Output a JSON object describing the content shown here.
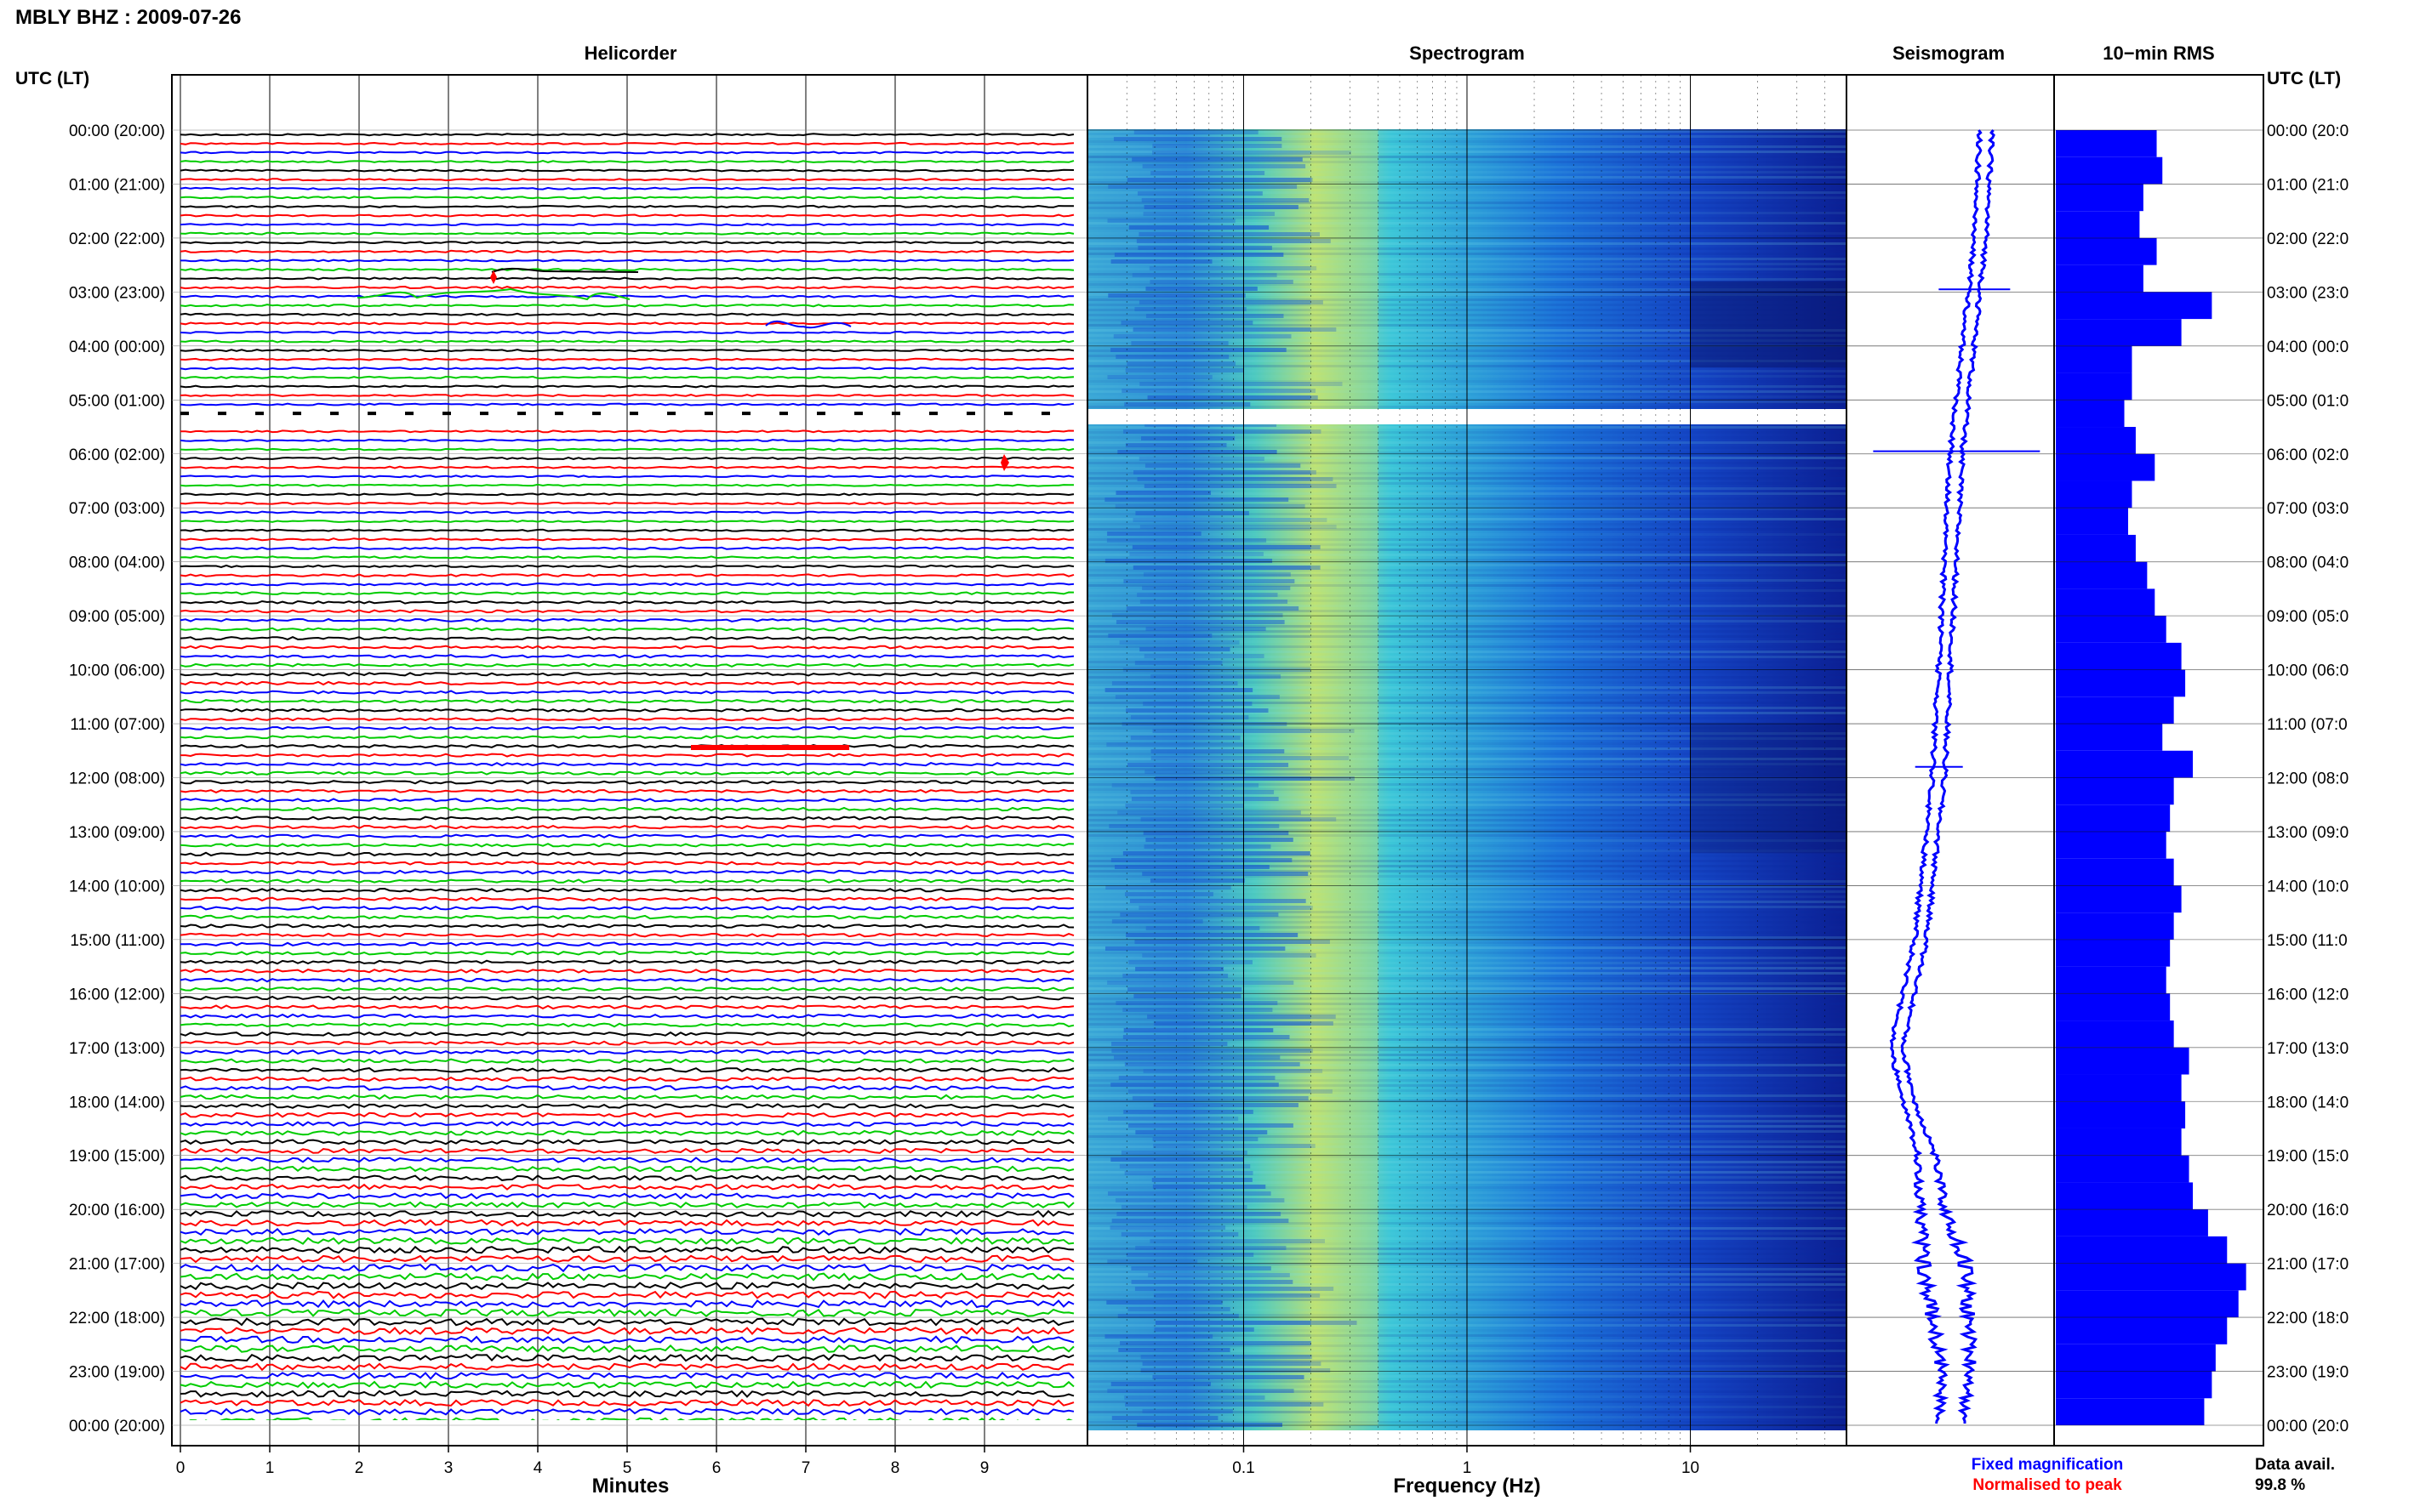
{
  "header": {
    "title": "MBLY BHZ : 2009-07-26",
    "utc_label_left": "UTC (LT)",
    "utc_label_right": "UTC (LT)"
  },
  "panels": {
    "helicorder": "Helicorder",
    "spectrogram": "Spectrogram",
    "seismogram": "Seismogram",
    "rms": "10−min RMS"
  },
  "axes": {
    "minutes_label": "Minutes",
    "frequency_label": "Frequency (Hz)"
  },
  "legend": {
    "fixed": "Fixed magnification",
    "normalised": "Normalised to peak"
  },
  "data_avail": {
    "label": "Data avail.",
    "value": "99.8 %"
  },
  "colors": {
    "trace_cycle": [
      "#000000",
      "#ff0000",
      "#0000ff",
      "#00cc00"
    ],
    "rms_fill": "#0000ff",
    "seismogram": "#0000ff",
    "fixed_text": "#0000ff",
    "normalised_text": "#ff0000",
    "spec_low": "#00005a",
    "spec_high": "#d8e63c"
  },
  "chart_data": [
    {
      "type": "line",
      "panel": "helicorder",
      "x": [
        0,
        1,
        2,
        3,
        4,
        5,
        6,
        7,
        8,
        9
      ],
      "xlabel": "Minutes",
      "row_minutes": 10,
      "y_time_labels": [
        "00:00 (20:00)",
        "01:00 (21:00)",
        "02:00 (22:00)",
        "03:00 (23:00)",
        "04:00 (00:00)",
        "05:00 (01:00)",
        "06:00 (02:00)",
        "07:00 (03:00)",
        "08:00 (04:00)",
        "09:00 (05:00)",
        "10:00 (06:00)",
        "11:00 (07:00)",
        "12:00 (08:00)",
        "13:00 (09:00)",
        "14:00 (10:00)",
        "15:00 (11:00)",
        "16:00 (12:00)",
        "17:00 (13:00)",
        "18:00 (14:00)",
        "19:00 (15:00)",
        "20:00 (16:00)",
        "21:00 (17:00)",
        "22:00 (18:00)",
        "23:00 (19:00)",
        "00:00 (20:00)"
      ],
      "right_time_labels": [
        "00:00 (20:0",
        "01:00 (21:0",
        "02:00 (22:0",
        "03:00 (23:0",
        "04:00 (00:0",
        "05:00 (01:0",
        "06:00 (02:0",
        "07:00 (03:0",
        "08:00 (04:0",
        "09:00 (05:0",
        "10:00 (06:0",
        "11:00 (07:0",
        "12:00 (08:0",
        "13:00 (09:0",
        "14:00 (10:0",
        "15:00 (11:0",
        "16:00 (12:0",
        "17:00 (13:0",
        "18:00 (14:0",
        "19:00 (15:0",
        "20:00 (16:0",
        "21:00 (17:0",
        "22:00 (18:0",
        "23:00 (19:0",
        "00:00 (20:0"
      ],
      "row_noise_by_hour": [
        0.6,
        0.6,
        0.6,
        0.7,
        0.6,
        0.6,
        0.6,
        0.6,
        0.7,
        0.9,
        1.0,
        0.9,
        1.0,
        1.0,
        1.1,
        1.1,
        1.1,
        1.3,
        1.4,
        1.6,
        2.0,
        2.4,
        2.4,
        2.2,
        2.0
      ]
    },
    {
      "type": "heatmap",
      "panel": "spectrogram",
      "xscale": "log",
      "xlim": [
        0.02,
        50
      ],
      "x_ticks": [
        0.1,
        1,
        10
      ],
      "x_tick_labels": [
        "0.1",
        "1",
        "10"
      ],
      "xlabel": "Frequency (Hz)",
      "peak_band_hz": [
        0.2,
        0.4
      ],
      "gap_hours": [
        5.1,
        5.35
      ]
    },
    {
      "type": "line",
      "panel": "seismogram",
      "hours": [
        0,
        2,
        4,
        5,
        6,
        8,
        10,
        12,
        13,
        15,
        17,
        18,
        19,
        20,
        21,
        22,
        23,
        24
      ],
      "offset": [
        0.6,
        0.5,
        0.3,
        0.2,
        0.1,
        0.0,
        -0.1,
        -0.2,
        -0.3,
        -0.5,
        -0.9,
        -0.7,
        -0.4,
        -0.3,
        -0.1,
        0.0,
        0.1,
        0.0
      ],
      "amplitude": [
        0.1,
        0.1,
        0.1,
        0.1,
        0.1,
        0.1,
        0.1,
        0.1,
        0.1,
        0.1,
        0.1,
        0.1,
        0.15,
        0.2,
        0.35,
        0.3,
        0.25,
        0.2
      ],
      "spikes": [
        {
          "hour": 2.95,
          "width": 0.6
        },
        {
          "hour": 5.95,
          "width": 1.4
        },
        {
          "hour": 11.8,
          "width": 0.4
        }
      ]
    },
    {
      "type": "bar",
      "panel": "rms",
      "hours": [
        0,
        0.5,
        1,
        1.5,
        2,
        2.5,
        3,
        3.5,
        4,
        4.5,
        5,
        5.5,
        6,
        6.5,
        7,
        7.5,
        8,
        8.5,
        9,
        9.5,
        10,
        10.5,
        11,
        11.5,
        12,
        12.5,
        13,
        13.5,
        14,
        14.5,
        15,
        15.5,
        16,
        16.5,
        17,
        17.5,
        18,
        18.5,
        19,
        19.5,
        20,
        20.5,
        21,
        21.5,
        22,
        22.5,
        23,
        23.5
      ],
      "values": [
        0.53,
        0.56,
        0.46,
        0.44,
        0.53,
        0.46,
        0.82,
        0.66,
        0.4,
        0.4,
        0.36,
        0.42,
        0.52,
        0.4,
        0.38,
        0.42,
        0.48,
        0.52,
        0.58,
        0.66,
        0.68,
        0.62,
        0.56,
        0.72,
        0.62,
        0.6,
        0.58,
        0.62,
        0.66,
        0.62,
        0.6,
        0.58,
        0.6,
        0.62,
        0.7,
        0.66,
        0.68,
        0.66,
        0.7,
        0.72,
        0.8,
        0.9,
        1.0,
        0.96,
        0.9,
        0.84,
        0.82,
        0.78
      ],
      "ylim": [
        0,
        1.1
      ]
    }
  ]
}
